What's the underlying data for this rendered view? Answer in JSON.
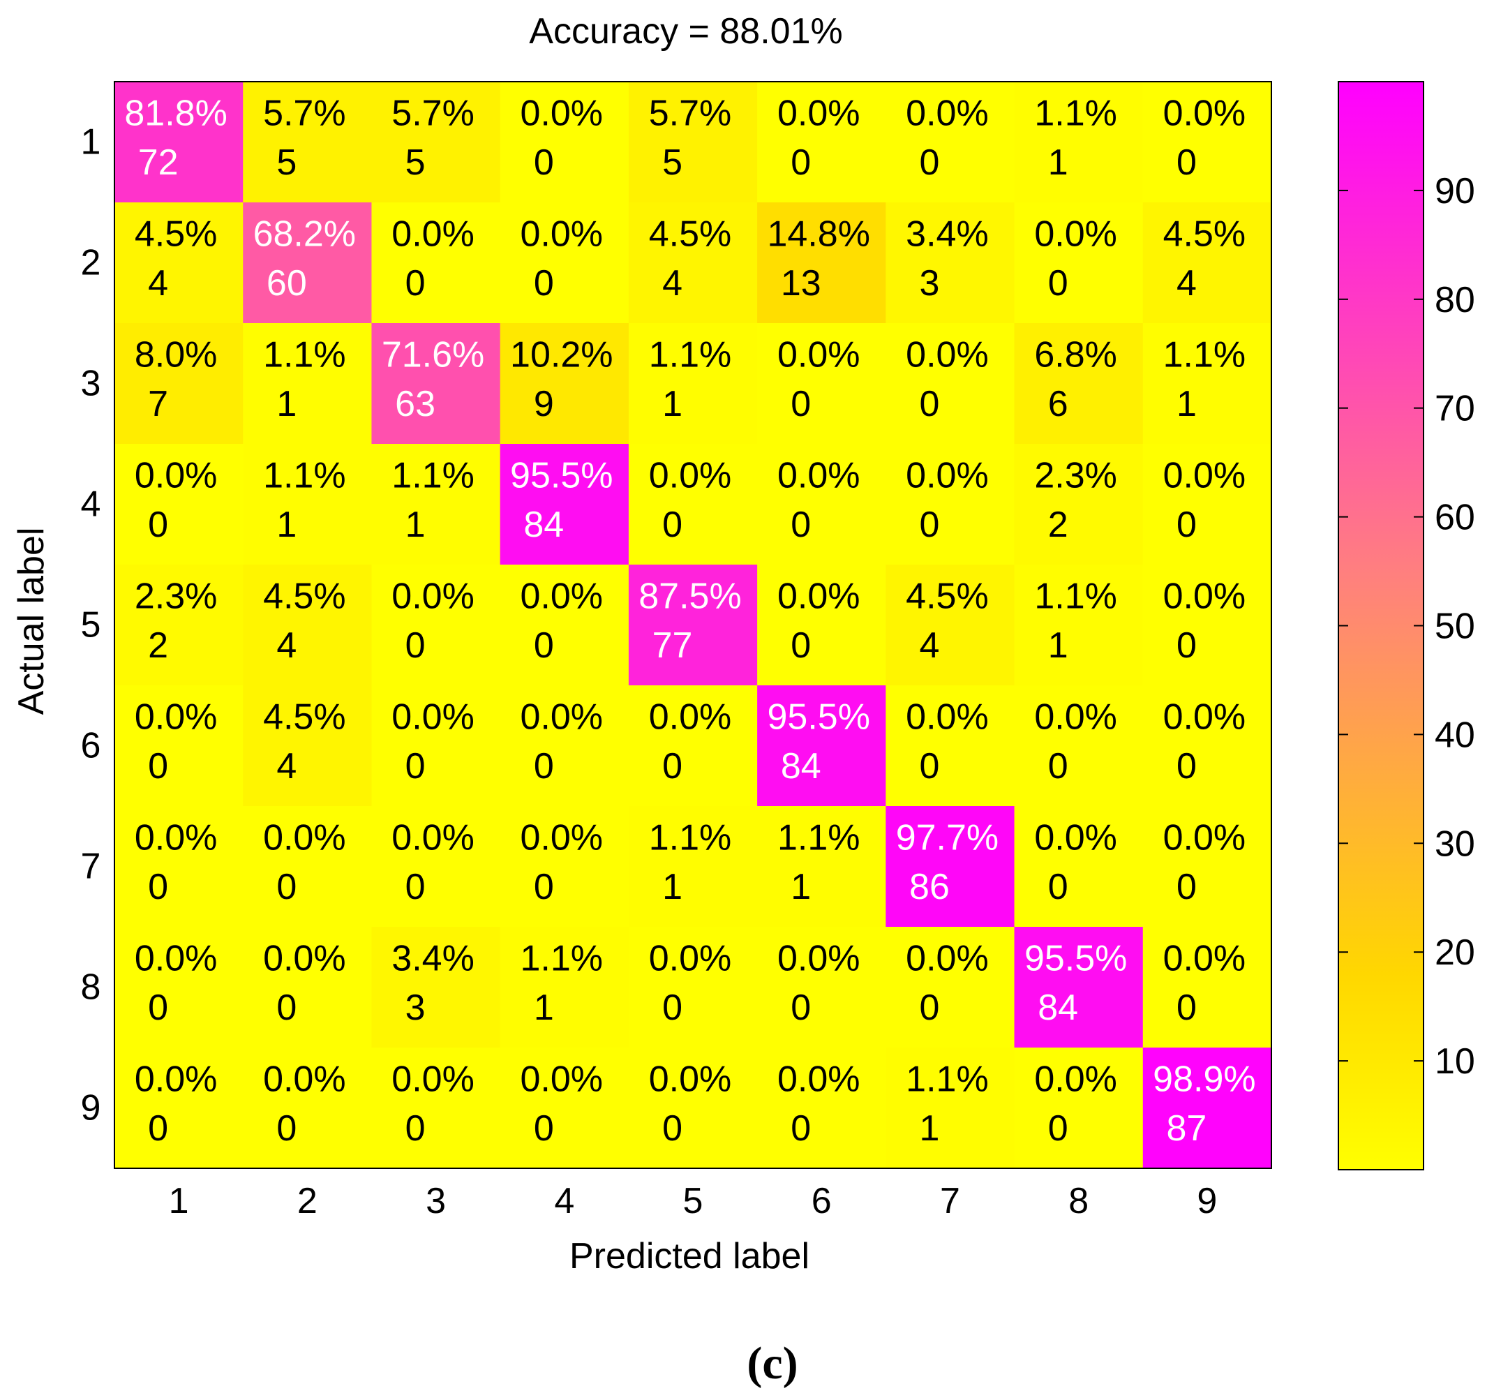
{
  "chart_data": {
    "type": "heatmap",
    "title": "Accuracy = 88.01%",
    "xlabel": "Predicted label",
    "ylabel": "Actual label",
    "x_categories": [
      "1",
      "2",
      "3",
      "4",
      "5",
      "6",
      "7",
      "8",
      "9"
    ],
    "y_categories": [
      "1",
      "2",
      "3",
      "4",
      "5",
      "6",
      "7",
      "8",
      "9"
    ],
    "counts": [
      [
        72,
        5,
        5,
        0,
        5,
        0,
        0,
        1,
        0
      ],
      [
        4,
        60,
        0,
        0,
        4,
        13,
        3,
        0,
        4
      ],
      [
        7,
        1,
        63,
        9,
        1,
        0,
        0,
        6,
        1
      ],
      [
        0,
        1,
        1,
        84,
        0,
        0,
        0,
        2,
        0
      ],
      [
        2,
        4,
        0,
        0,
        77,
        0,
        4,
        1,
        0
      ],
      [
        0,
        4,
        0,
        0,
        0,
        84,
        0,
        0,
        0
      ],
      [
        0,
        0,
        0,
        0,
        1,
        1,
        86,
        0,
        0
      ],
      [
        0,
        0,
        3,
        1,
        0,
        0,
        0,
        84,
        0
      ],
      [
        0,
        0,
        0,
        0,
        0,
        0,
        1,
        0,
        87
      ]
    ],
    "percentages": [
      [
        "81.8%",
        "5.7%",
        "5.7%",
        "0.0%",
        "5.7%",
        "0.0%",
        "0.0%",
        "1.1%",
        "0.0%"
      ],
      [
        "4.5%",
        "68.2%",
        "0.0%",
        "0.0%",
        "4.5%",
        "14.8%",
        "3.4%",
        "0.0%",
        "4.5%"
      ],
      [
        "8.0%",
        "1.1%",
        "71.6%",
        "10.2%",
        "1.1%",
        "0.0%",
        "0.0%",
        "6.8%",
        "1.1%"
      ],
      [
        "0.0%",
        "1.1%",
        "1.1%",
        "95.5%",
        "0.0%",
        "0.0%",
        "0.0%",
        "2.3%",
        "0.0%"
      ],
      [
        "2.3%",
        "4.5%",
        "0.0%",
        "0.0%",
        "87.5%",
        "0.0%",
        "4.5%",
        "1.1%",
        "0.0%"
      ],
      [
        "0.0%",
        "4.5%",
        "0.0%",
        "0.0%",
        "0.0%",
        "95.5%",
        "0.0%",
        "0.0%",
        "0.0%"
      ],
      [
        "0.0%",
        "0.0%",
        "0.0%",
        "0.0%",
        "1.1%",
        "1.1%",
        "97.7%",
        "0.0%",
        "0.0%"
      ],
      [
        "0.0%",
        "0.0%",
        "3.4%",
        "1.1%",
        "0.0%",
        "0.0%",
        "0.0%",
        "95.5%",
        "0.0%"
      ],
      [
        "0.0%",
        "0.0%",
        "0.0%",
        "0.0%",
        "0.0%",
        "0.0%",
        "1.1%",
        "0.0%",
        "98.9%"
      ]
    ],
    "colorbar": {
      "range": [
        0,
        100
      ],
      "ticks": [
        10,
        20,
        30,
        40,
        50,
        60,
        70,
        80,
        90
      ],
      "colors": {
        "low": "#ffff00",
        "mid_low": "#ffd700",
        "mid": "#ff7f7f",
        "high": "#ff00ff"
      }
    },
    "panel_label": "(c)"
  }
}
